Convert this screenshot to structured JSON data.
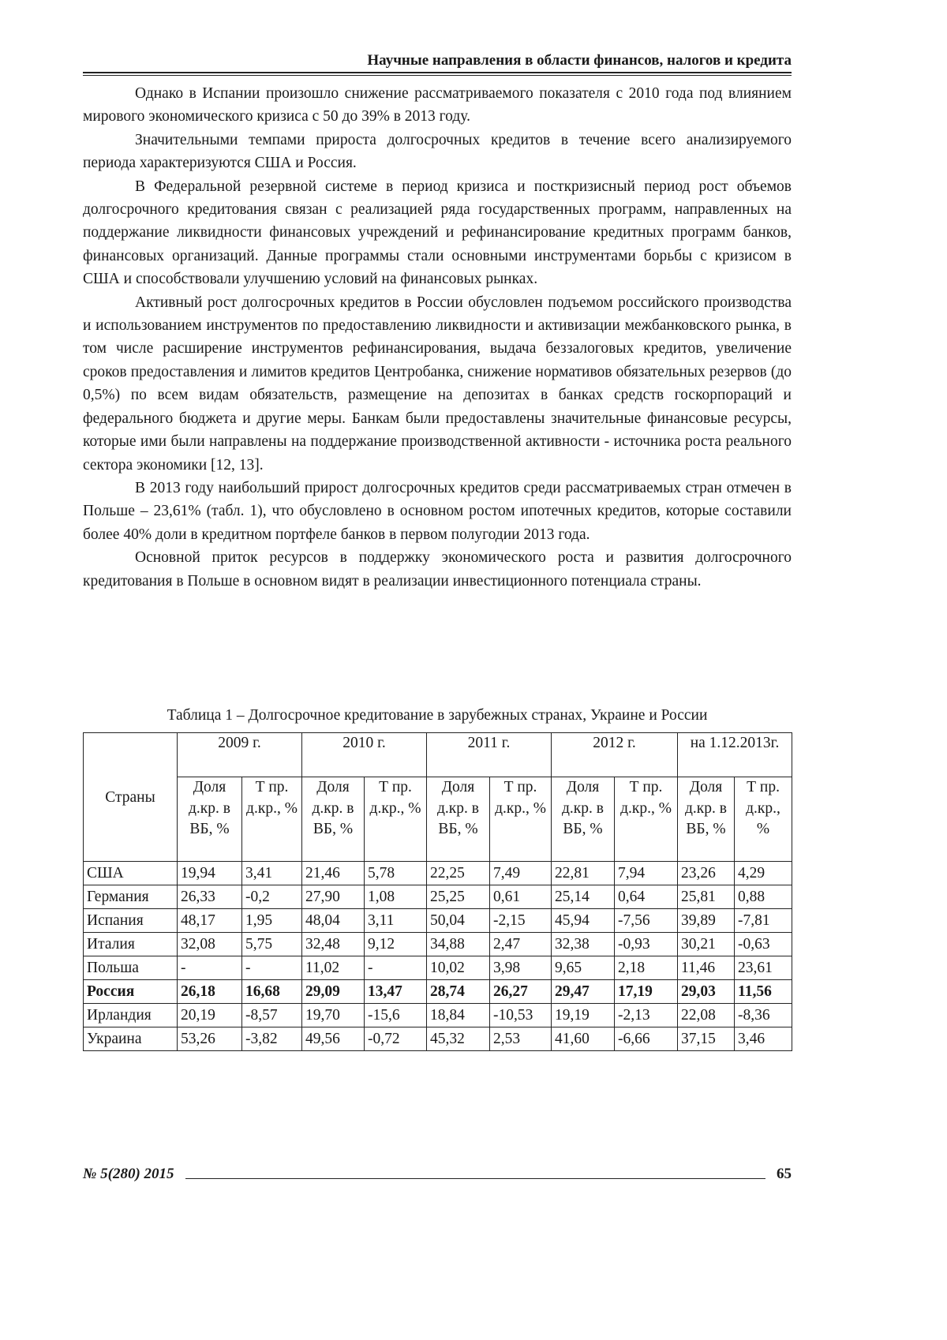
{
  "header": "Научные направления в области финансов, налогов и кредита",
  "paragraphs": [
    "Однако в Испании произошло снижение рассматриваемого показателя с 2010 года под влиянием мирового экономического кризиса с 50 до 39% в 2013 году.",
    "Значительными темпами прироста долгосрочных кредитов в течение всего анализируемого периода характеризуются США и Россия.",
    "В Федеральной резервной системе в период кризиса и посткризисный период рост объемов долгосрочного кредитования связан с реализацией ряда государственных программ, направленных на поддержание ликвидности финансовых учреждений и рефинансирование кредитных программ банков, финансовых организаций. Данные программы стали основными инструментами борьбы с кризисом в США и способствовали улучшению условий на финансовых рынках.",
    "Активный рост долгосрочных кредитов в России обусловлен подъемом российского производства и использованием инструментов по предоставлению ликвидности и активизации межбанковского рынка, в том числе расширение инструментов рефинансирования, выдача беззалоговых кредитов, увеличение сроков предоставления и лимитов кредитов Центробанка, снижение нормативов обязательных резервов (до 0,5%) по всем видам обязательств, размещение на депозитах в банках средств госкорпораций и федерального бюджета и другие меры. Банкам были предоставлены значительные финансовые ресурсы, которые ими были направлены на поддержание производственной активности - источника роста реального сектора экономики [12, 13].",
    "В 2013 году наибольший прирост долгосрочных кредитов среди рассматриваемых стран отмечен в Польше – 23,61% (табл. 1), что обусловлено в основном ростом ипотечных кредитов, которые составили более 40% доли в кредитном портфеле банков в первом полугодии 2013 года.",
    "Основной приток ресурсов в поддержку экономического роста и развития долгосрочного кредитования в Польше в основном видят в реализации инвестиционного потенциала страны."
  ],
  "table": {
    "caption": "Таблица 1 – Долгосрочное кредитование в зарубежных странах, Украине и России",
    "country_header": "Страны",
    "years": [
      "2009 г.",
      "2010 г.",
      "2011 г.",
      "2012 г.",
      "на 1.12.2013г."
    ],
    "sub": [
      "Доля д.кр. в ВБ, %",
      "Т пр. д.кр., %",
      "Доля д.кр. в ВБ, %",
      "Т пр. д.кр., %",
      "Доля д.кр. в ВБ, %",
      "Т пр. д.кр., %",
      "Доля д.кр. в ВБ, %",
      "Т пр. д.кр., %",
      "Доля д.кр. в ВБ, %",
      "Т пр. д.кр., %"
    ],
    "rows": [
      [
        "США",
        "19,94",
        "3,41",
        "21,46",
        "5,78",
        "22,25",
        "7,49",
        "22,81",
        "7,94",
        "23,26",
        "4,29"
      ],
      [
        "Германия",
        "26,33",
        "-0,2",
        "27,90",
        "1,08",
        "25,25",
        "0,61",
        "25,14",
        "0,64",
        "25,81",
        "0,88"
      ],
      [
        "Испания",
        "48,17",
        "1,95",
        "48,04",
        "3,11",
        "50,04",
        "-2,15",
        "45,94",
        "-7,56",
        "39,89",
        "-7,81"
      ],
      [
        "Италия",
        "32,08",
        "5,75",
        "32,48",
        "9,12",
        "34,88",
        "2,47",
        "32,38",
        "-0,93",
        "30,21",
        "-0,63"
      ],
      [
        "Польша",
        "-",
        "-",
        "11,02",
        "-",
        "10,02",
        "3,98",
        "9,65",
        "2,18",
        "11,46",
        "23,61"
      ],
      [
        "Россия",
        "26,18",
        "16,68",
        "29,09",
        "13,47",
        "28,74",
        "26,27",
        "29,47",
        "17,19",
        "29,03",
        "11,56"
      ],
      [
        "Ирландия",
        "20,19",
        "-8,57",
        "19,70",
        "-15,6",
        "18,84",
        "-10,53",
        "19,19",
        "-2,13",
        "22,08",
        "-8,36"
      ],
      [
        "Украина",
        "53,26",
        "-3,82",
        "49,56",
        "-0,72",
        "45,32",
        "2,53",
        "41,60",
        "-6,66",
        "37,15",
        "3,46"
      ]
    ],
    "bold_row": "Россия"
  },
  "footer": {
    "issue": "№ 5(280) 2015",
    "page": "65"
  }
}
